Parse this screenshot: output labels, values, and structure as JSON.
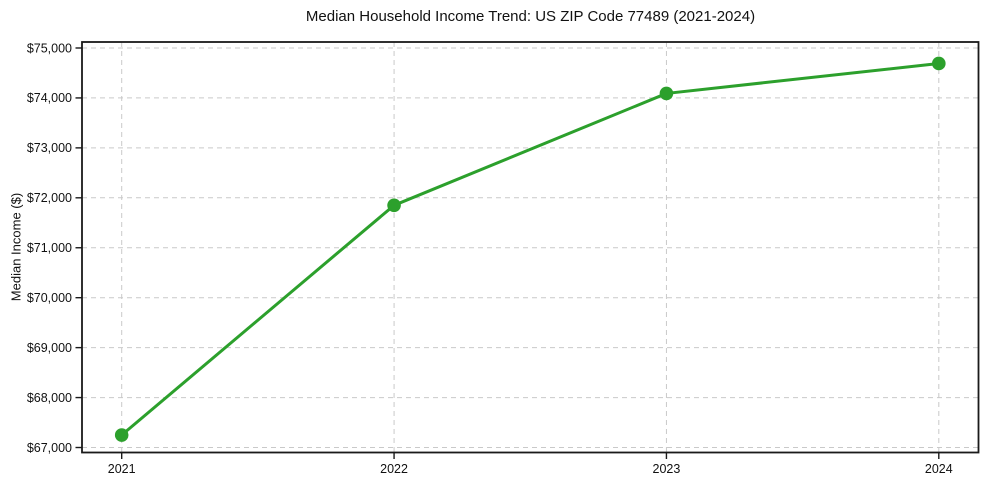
{
  "chart_data": {
    "type": "line",
    "title": "Median Household Income Trend: US ZIP Code 77489 (2021-2024)",
    "ylabel": "Median Income ($)",
    "xlabel": "",
    "categories": [
      "2021",
      "2022",
      "2023",
      "2024"
    ],
    "values": [
      67250,
      71850,
      74090,
      74690
    ],
    "yticks": [
      67000,
      68000,
      69000,
      70000,
      71000,
      72000,
      73000,
      74000,
      75000
    ],
    "ytick_labels": [
      "$67,000",
      "$68,000",
      "$69,000",
      "$70,000",
      "$71,000",
      "$72,000",
      "$73,000",
      "$74,000",
      "$75,000"
    ],
    "ylim": [
      66900,
      75120
    ],
    "grid": true,
    "grid_line_style": "dashed",
    "legend_position": "none",
    "line_color": "#2ca02c",
    "marker": "circle",
    "marker_color": "#2ca02c",
    "grid_color": "#c9c9c9",
    "spine_color": "#1a1a1a",
    "background_color": "#ffffff"
  }
}
